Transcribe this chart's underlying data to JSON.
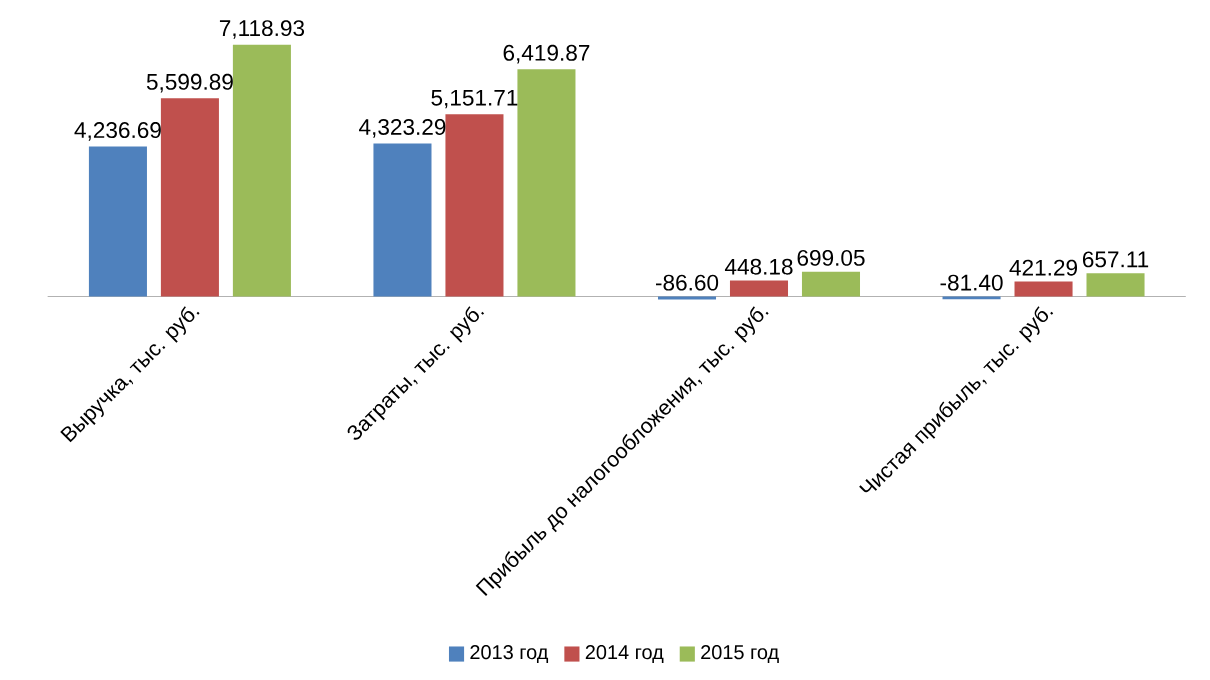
{
  "chart_data": {
    "type": "bar",
    "categories": [
      "Выручка, тыс. руб.",
      "Затраты, тыс. руб.",
      "Прибыль до налогообложения, тыс. руб.",
      "Чистая прибыль, тыс. руб."
    ],
    "series": [
      {
        "name": "2013 год",
        "color": "#4f81bd",
        "values": [
          4236.69,
          4323.29,
          -86.6,
          -81.4
        ],
        "value_labels": [
          "4,236.69",
          "4,323.29",
          "-86.60",
          "-81.40"
        ]
      },
      {
        "name": "2014 год",
        "color": "#c0504d",
        "values": [
          5599.89,
          5151.71,
          448.18,
          421.29
        ],
        "value_labels": [
          "5,599.89",
          "5,151.71",
          "448.18",
          "421.29"
        ]
      },
      {
        "name": "2015 год",
        "color": "#9bbb59",
        "values": [
          7118.93,
          6419.87,
          699.05,
          657.11
        ],
        "value_labels": [
          "7,118.93",
          "6,419.87",
          "699.05",
          "657.11"
        ]
      }
    ],
    "legend": "bottom"
  }
}
